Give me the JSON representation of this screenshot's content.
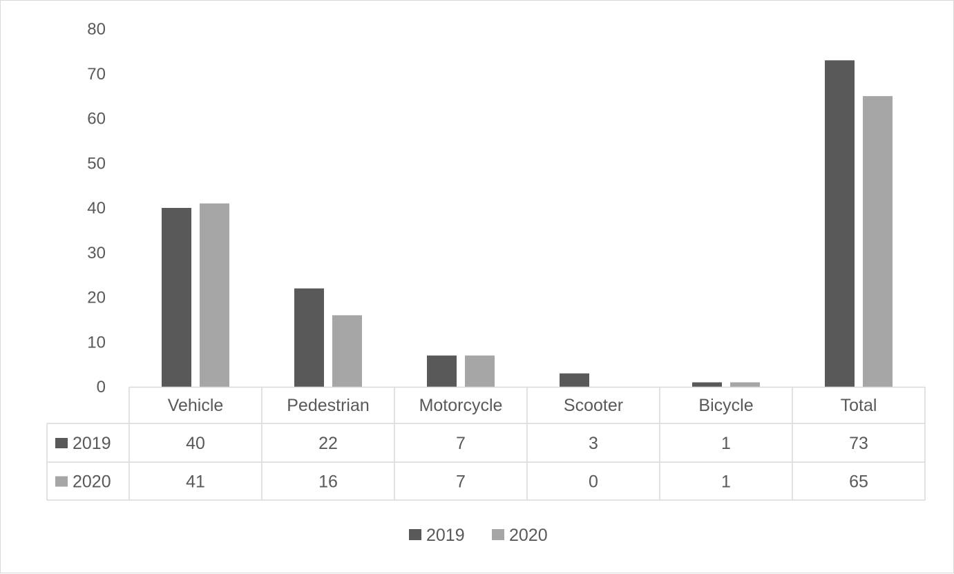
{
  "chart_data": {
    "type": "bar",
    "categories": [
      "Vehicle",
      "Pedestrian",
      "Motorcycle",
      "Scooter",
      "Bicycle",
      "Total"
    ],
    "series": [
      {
        "name": "2019",
        "values": [
          40,
          22,
          7,
          3,
          1,
          73
        ]
      },
      {
        "name": "2020",
        "values": [
          41,
          16,
          7,
          0,
          1,
          65
        ]
      }
    ],
    "ylim": [
      0,
      80
    ],
    "yticks": [
      0,
      10,
      20,
      30,
      40,
      50,
      60,
      70,
      80
    ],
    "grid": false,
    "legend": "bottom-center",
    "data_table": true
  },
  "colors": {
    "2019": "#595959",
    "2020": "#a6a6a6",
    "border": "#d9d9d9",
    "text": "#595959"
  }
}
